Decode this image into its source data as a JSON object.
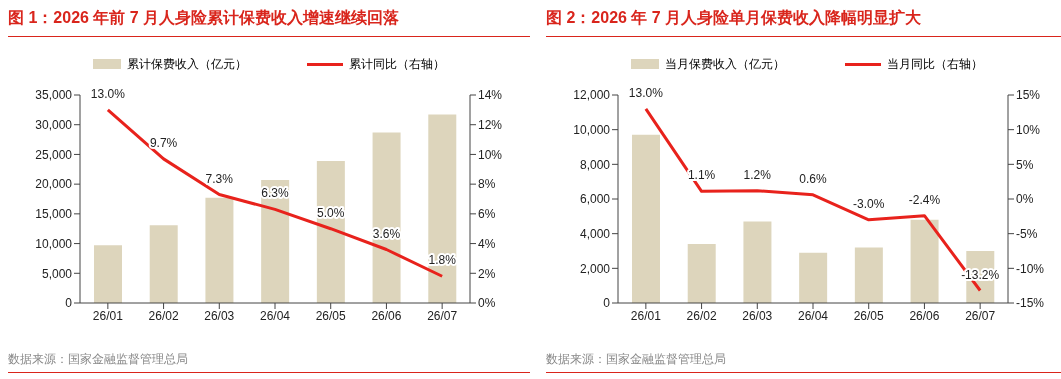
{
  "chart_data": [
    {
      "type": "bar",
      "title": "图 1：2026 年前 7 月人身险累计保费收入增速继续回落",
      "categories": [
        "26/01",
        "26/02",
        "26/03",
        "26/04",
        "26/05",
        "26/06",
        "26/07"
      ],
      "series": [
        {
          "name": "累计保费收入（亿元）",
          "color": "#ddd5bc",
          "values": [
            9700,
            13100,
            17700,
            20700,
            23900,
            28700,
            31700
          ]
        },
        {
          "name": "累计同比（右轴）",
          "type": "line",
          "axis": "y2",
          "color": "#e8221c",
          "values": [
            13.0,
            9.7,
            7.3,
            6.3,
            5.0,
            3.6,
            1.8
          ],
          "value_labels": [
            "13.0%",
            "9.7%",
            "7.3%",
            "6.3%",
            "5.0%",
            "3.6%",
            "1.8%"
          ]
        }
      ],
      "ylim": [
        0,
        35000
      ],
      "yticks": [
        0,
        {
          "value": 5000,
          "label": "5,000"
        },
        {
          "value": 10000,
          "label": "10,000"
        },
        {
          "value": 15000,
          "label": "15,000"
        },
        {
          "value": 20000,
          "label": "20,000"
        },
        {
          "value": 25000,
          "label": "25,000"
        },
        {
          "value": 30000,
          "label": "30,000"
        },
        {
          "value": 35000,
          "label": "35,000"
        }
      ],
      "y2lim": [
        0,
        14
      ],
      "y2ticks": [
        {
          "value": 0,
          "label": "0%"
        },
        {
          "value": 2,
          "label": "2%"
        },
        {
          "value": 4,
          "label": "4%"
        },
        {
          "value": 6,
          "label": "6%"
        },
        {
          "value": 8,
          "label": "8%"
        },
        {
          "value": 10,
          "label": "10%"
        },
        {
          "value": 12,
          "label": "12%"
        },
        {
          "value": 14,
          "label": "14%"
        }
      ],
      "legend": "top",
      "marker": "none",
      "line_style": "solid",
      "annotations": [
        "数据来源：国家金融监督管理总局"
      ]
    },
    {
      "type": "bar",
      "title": "图 2：2026 年 7 月人身险单月保费收入降幅明显扩大",
      "categories": [
        "26/01",
        "26/02",
        "26/03",
        "26/04",
        "26/05",
        "26/06",
        "26/07"
      ],
      "series": [
        {
          "name": "当月保费收入（亿元）",
          "color": "#ddd5bc",
          "values": [
            9700,
            3400,
            4700,
            2900,
            3200,
            4800,
            3000
          ]
        },
        {
          "name": "当月同比（右轴）",
          "type": "line",
          "axis": "y2",
          "color": "#e8221c",
          "values": [
            13.0,
            1.1,
            1.2,
            0.6,
            -3.0,
            -2.4,
            -13.2
          ],
          "value_labels": [
            "13.0%",
            "1.1%",
            "1.2%",
            "0.6%",
            "-3.0%",
            "-2.4%",
            "-13.2%"
          ]
        }
      ],
      "ylim": [
        0,
        12000
      ],
      "yticks": [
        0,
        {
          "value": 2000,
          "label": "2,000"
        },
        {
          "value": 4000,
          "label": "4,000"
        },
        {
          "value": 6000,
          "label": "6,000"
        },
        {
          "value": 8000,
          "label": "8,000"
        },
        {
          "value": 10000,
          "label": "10,000"
        },
        {
          "value": 12000,
          "label": "12,000"
        }
      ],
      "y2lim": [
        -15,
        15
      ],
      "y2ticks": [
        {
          "value": -15,
          "label": "-15%"
        },
        {
          "value": -10,
          "label": "-10%"
        },
        {
          "value": -5,
          "label": "-5%"
        },
        {
          "value": 0,
          "label": "0%"
        },
        {
          "value": 5,
          "label": "5%"
        },
        {
          "value": 10,
          "label": "10%"
        },
        {
          "value": 15,
          "label": "15%"
        }
      ],
      "legend": "top",
      "marker": "none",
      "line_style": "solid",
      "annotations": [
        "数据来源：国家金融监督管理总局"
      ]
    }
  ]
}
